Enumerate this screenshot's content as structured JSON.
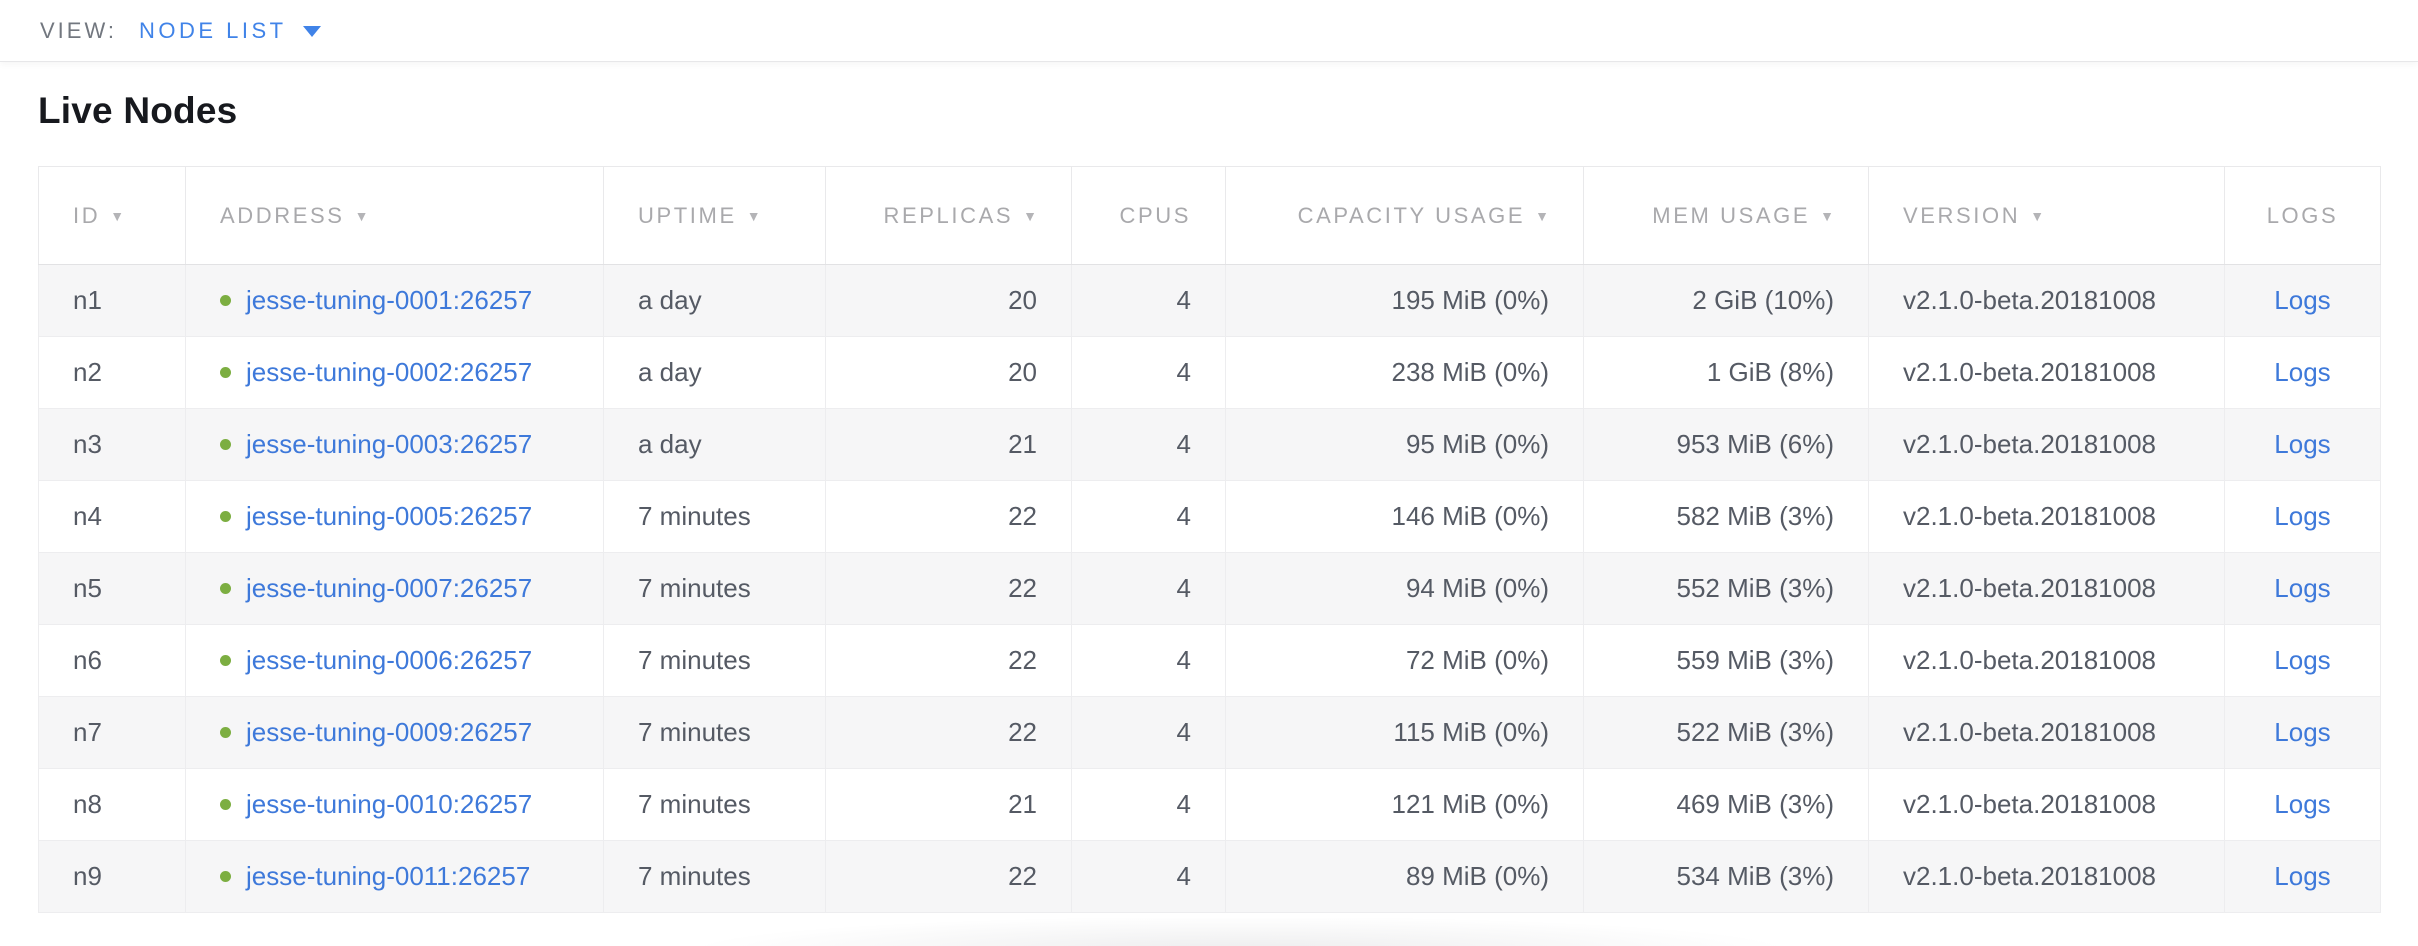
{
  "view_bar": {
    "label": "VIEW:",
    "selected": "NODE LIST"
  },
  "page": {
    "title": "Live Nodes"
  },
  "icons": {
    "sort_desc": "▼",
    "dropdown_arrow": "▼",
    "status_dot": "live-green-dot"
  },
  "colors": {
    "accent_blue": "#4083e8",
    "link_blue": "#3e79da",
    "node_live_green": "#7cae41",
    "header_gray": "#a9a9ac",
    "body_text": "#555a64",
    "alt_row_bg": "#f6f6f7"
  },
  "table": {
    "columns": [
      {
        "key": "id",
        "label": "ID",
        "sortable": true,
        "align": "left"
      },
      {
        "key": "address",
        "label": "ADDRESS",
        "sortable": true,
        "align": "left"
      },
      {
        "key": "uptime",
        "label": "UPTIME",
        "sortable": true,
        "align": "left"
      },
      {
        "key": "replicas",
        "label": "REPLICAS",
        "sortable": true,
        "align": "right"
      },
      {
        "key": "cpus",
        "label": "CPUS",
        "sortable": false,
        "align": "right"
      },
      {
        "key": "capacity",
        "label": "CAPACITY USAGE",
        "sortable": true,
        "align": "right"
      },
      {
        "key": "mem",
        "label": "MEM USAGE",
        "sortable": true,
        "align": "right"
      },
      {
        "key": "version",
        "label": "VERSION",
        "sortable": true,
        "align": "left"
      },
      {
        "key": "logs",
        "label": "LOGS",
        "sortable": false,
        "align": "center"
      }
    ],
    "rows": [
      {
        "id": "n1",
        "status": "live",
        "address": "jesse-tuning-0001:26257",
        "uptime": "a day",
        "replicas": "20",
        "cpus": "4",
        "capacity": "195 MiB (0%)",
        "mem": "2 GiB (10%)",
        "version": "v2.1.0-beta.20181008",
        "logs": "Logs"
      },
      {
        "id": "n2",
        "status": "live",
        "address": "jesse-tuning-0002:26257",
        "uptime": "a day",
        "replicas": "20",
        "cpus": "4",
        "capacity": "238 MiB (0%)",
        "mem": "1 GiB (8%)",
        "version": "v2.1.0-beta.20181008",
        "logs": "Logs"
      },
      {
        "id": "n3",
        "status": "live",
        "address": "jesse-tuning-0003:26257",
        "uptime": "a day",
        "replicas": "21",
        "cpus": "4",
        "capacity": "95 MiB (0%)",
        "mem": "953 MiB (6%)",
        "version": "v2.1.0-beta.20181008",
        "logs": "Logs"
      },
      {
        "id": "n4",
        "status": "live",
        "address": "jesse-tuning-0005:26257",
        "uptime": "7 minutes",
        "replicas": "22",
        "cpus": "4",
        "capacity": "146 MiB (0%)",
        "mem": "582 MiB (3%)",
        "version": "v2.1.0-beta.20181008",
        "logs": "Logs"
      },
      {
        "id": "n5",
        "status": "live",
        "address": "jesse-tuning-0007:26257",
        "uptime": "7 minutes",
        "replicas": "22",
        "cpus": "4",
        "capacity": "94 MiB (0%)",
        "mem": "552 MiB (3%)",
        "version": "v2.1.0-beta.20181008",
        "logs": "Logs"
      },
      {
        "id": "n6",
        "status": "live",
        "address": "jesse-tuning-0006:26257",
        "uptime": "7 minutes",
        "replicas": "22",
        "cpus": "4",
        "capacity": "72 MiB (0%)",
        "mem": "559 MiB (3%)",
        "version": "v2.1.0-beta.20181008",
        "logs": "Logs"
      },
      {
        "id": "n7",
        "status": "live",
        "address": "jesse-tuning-0009:26257",
        "uptime": "7 minutes",
        "replicas": "22",
        "cpus": "4",
        "capacity": "115 MiB (0%)",
        "mem": "522 MiB (3%)",
        "version": "v2.1.0-beta.20181008",
        "logs": "Logs"
      },
      {
        "id": "n8",
        "status": "live",
        "address": "jesse-tuning-0010:26257",
        "uptime": "7 minutes",
        "replicas": "21",
        "cpus": "4",
        "capacity": "121 MiB (0%)",
        "mem": "469 MiB (3%)",
        "version": "v2.1.0-beta.20181008",
        "logs": "Logs"
      },
      {
        "id": "n9",
        "status": "live",
        "address": "jesse-tuning-0011:26257",
        "uptime": "7 minutes",
        "replicas": "22",
        "cpus": "4",
        "capacity": "89 MiB (0%)",
        "mem": "534 MiB (3%)",
        "version": "v2.1.0-beta.20181008",
        "logs": "Logs"
      }
    ]
  }
}
